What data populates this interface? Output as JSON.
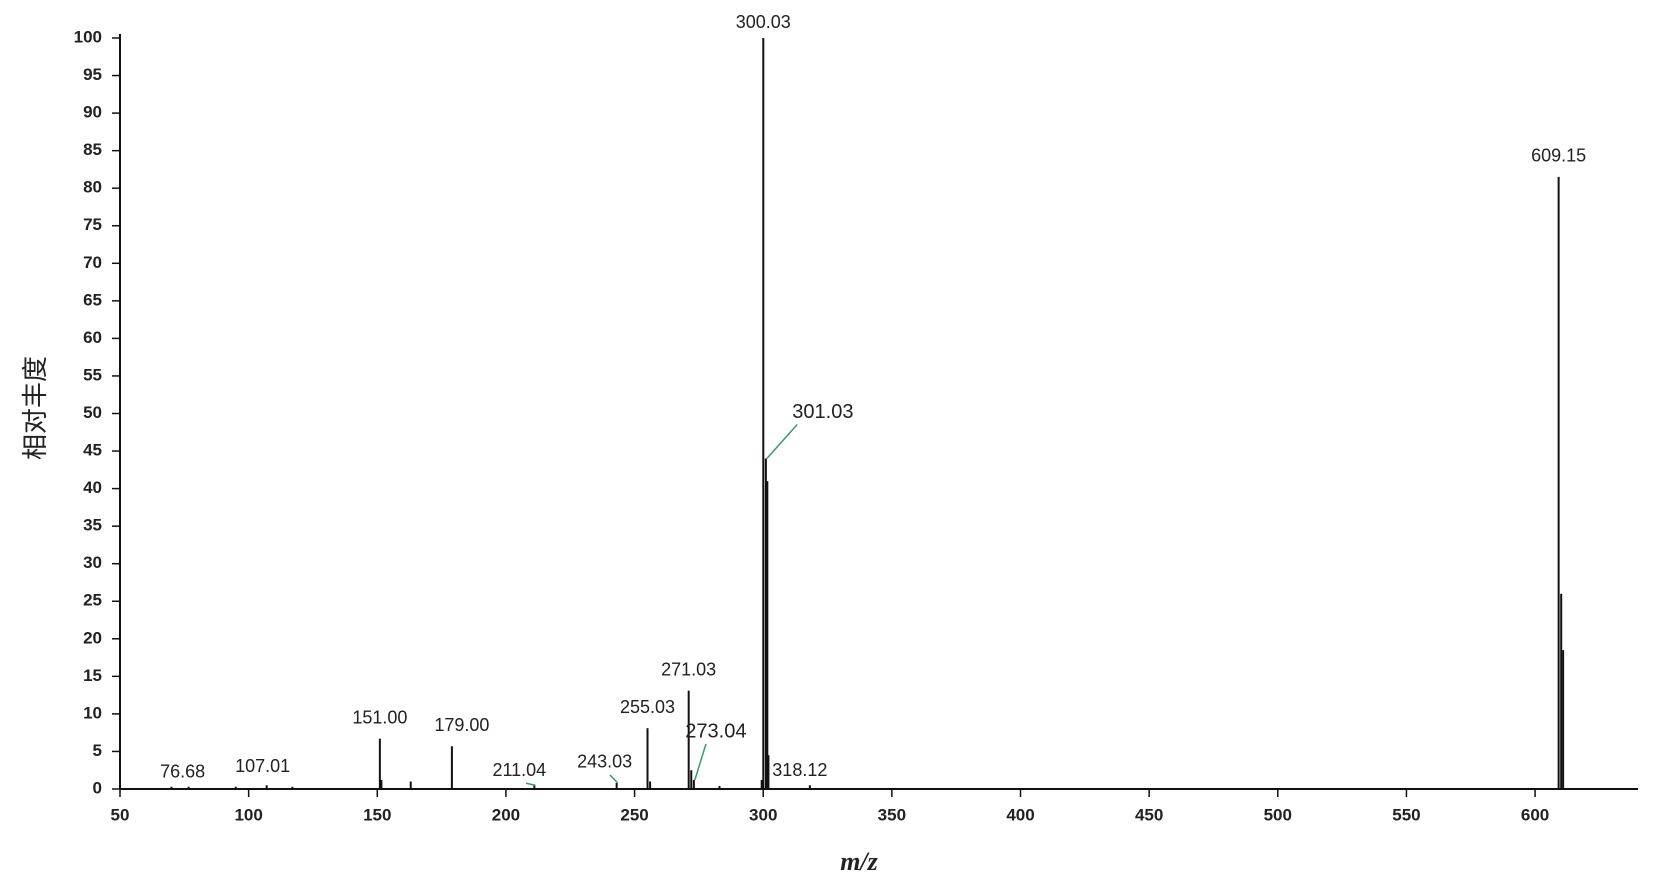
{
  "chart_data": {
    "type": "spectrum",
    "xlabel": "m/z",
    "ylabel": "相对丰度",
    "x": [
      70,
      76.68,
      95,
      107.01,
      117,
      151.0,
      151.6,
      163,
      179.0,
      211.04,
      243.03,
      255.03,
      256.03,
      271.03,
      272.03,
      273.04,
      283,
      299.4,
      300.03,
      301.03,
      301.6,
      302.03,
      318.12,
      609.15,
      610.15,
      610.9
    ],
    "values": [
      0.3,
      0.3,
      0.3,
      0.5,
      0.3,
      6.7,
      1.2,
      1.0,
      5.7,
      0.5,
      0.8,
      8.1,
      1.0,
      13.1,
      2.5,
      1.2,
      0.4,
      1.2,
      100,
      44,
      41,
      4.5,
      0.5,
      81.5,
      26,
      18.5
    ],
    "peak_labels": [
      null,
      "76.68",
      null,
      "107.01",
      null,
      "151.00",
      null,
      null,
      "179.00",
      "211.04",
      "243.03",
      "255.03",
      null,
      "271.03",
      null,
      "273.04",
      null,
      null,
      "300.03",
      "301.03",
      null,
      null,
      "318.12",
      "609.15",
      null,
      null
    ],
    "color": "#111111",
    "leader_color": "#3a9a6a",
    "xlim": [
      50,
      640
    ],
    "xticks": [
      50,
      100,
      150,
      200,
      250,
      300,
      350,
      400,
      450,
      500,
      550,
      600
    ],
    "ylim": [
      0,
      100
    ],
    "yticks": [
      0,
      5,
      10,
      15,
      20,
      25,
      30,
      35,
      40,
      45,
      50,
      55,
      60,
      65,
      70,
      75,
      80,
      85,
      90,
      95,
      100
    ],
    "grid": false
  }
}
